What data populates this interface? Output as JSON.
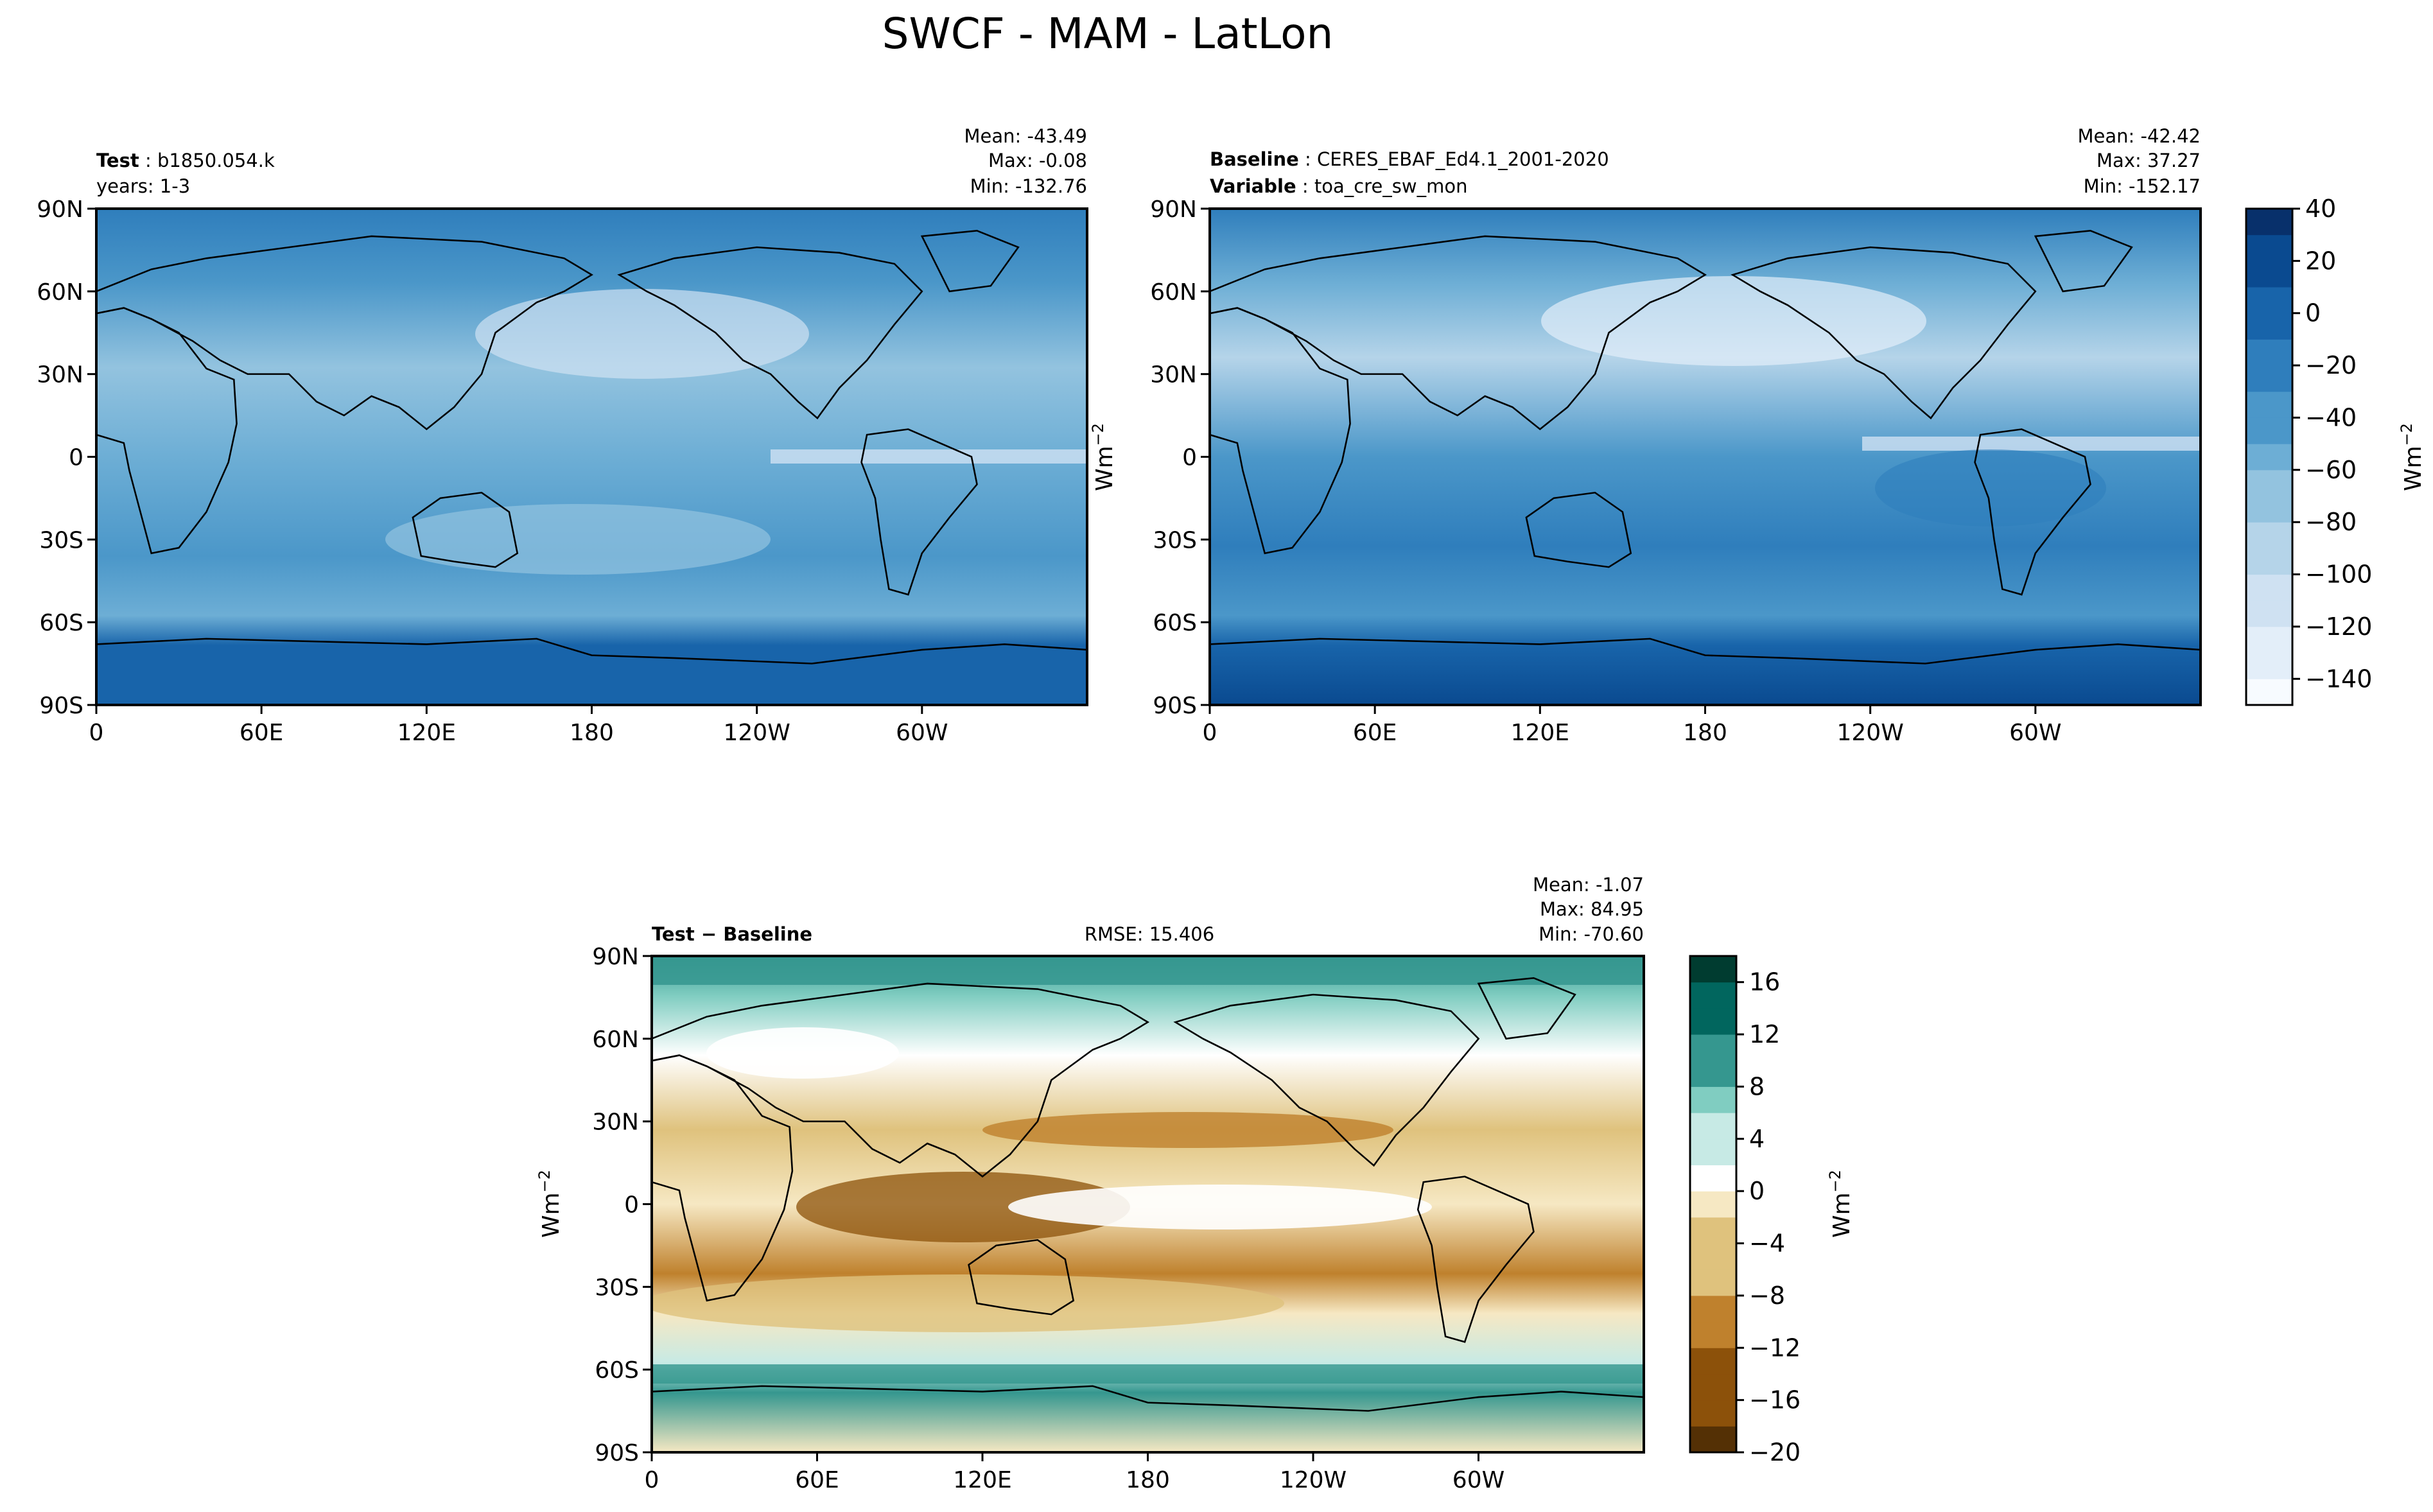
{
  "chart_data": [
    {
      "type": "heatmap",
      "id": "test",
      "panel_label_bold": "Test",
      "panel_label_value": "b1850.054.k",
      "panel_label_line2": "years: 1-3",
      "stats": [
        "Mean: -43.49",
        "Max: -0.08",
        "Min: -132.76"
      ],
      "xticks": [
        "0",
        "60E",
        "120E",
        "180",
        "120W",
        "60W"
      ],
      "yticks": [
        "90N",
        "60N",
        "30N",
        "0",
        "30S",
        "60S",
        "90S"
      ]
    },
    {
      "type": "heatmap",
      "id": "baseline",
      "panel_label_bold": "Baseline",
      "panel_label_value": "CERES_EBAF_Ed4.1_2001-2020",
      "panel_label2_bold": "Variable",
      "panel_label2_value": "toa_cre_sw_mon",
      "stats": [
        "Mean: -42.42",
        "Max: 37.27",
        "Min: -152.17"
      ],
      "xticks": [
        "0",
        "60E",
        "120E",
        "180",
        "120W",
        "60W"
      ],
      "yticks": [
        "90N",
        "60N",
        "30N",
        "0",
        "30S",
        "60S",
        "90S"
      ]
    },
    {
      "type": "heatmap",
      "id": "diff",
      "panel_label_bold": "Test − Baseline",
      "rmse": "RMSE: 15.406",
      "stats": [
        "Mean: -1.07",
        "Max: 84.95",
        "Min: -70.60"
      ],
      "xticks": [
        "0",
        "60E",
        "120E",
        "180",
        "120W",
        "60W"
      ],
      "yticks": [
        "90N",
        "60N",
        "30N",
        "0",
        "30S",
        "60S",
        "90S"
      ]
    }
  ],
  "title": "SWCF - MAM - LatLon",
  "colorbar_main": {
    "label": "Wm",
    "label_sup": "−2",
    "ticks": [
      "40",
      "20",
      "0",
      "−20",
      "−40",
      "−60",
      "−80",
      "−100",
      "−120",
      "−140"
    ],
    "range": [
      -150,
      40
    ]
  },
  "colorbar_diff": {
    "label": "Wm",
    "label_sup": "−2",
    "ticks": [
      "16",
      "12",
      "8",
      "4",
      "0",
      "−4",
      "−8",
      "−12",
      "−16",
      "−20"
    ],
    "range": [
      -20,
      18
    ]
  },
  "side_axis_label": {
    "text": "Wm",
    "sup": "−2"
  },
  "colors": {
    "blues": [
      "#f7fbff",
      "#e3eef9",
      "#cfe1f2",
      "#b5d4e9",
      "#93c3df",
      "#6daed5",
      "#4b97c9",
      "#2f7ebc",
      "#1864aa",
      "#0a4a90",
      "#08306b"
    ],
    "brbg_neg": [
      "#543005",
      "#8c510a",
      "#bf812d",
      "#dfc27d",
      "#f6e8c3"
    ],
    "brbg_pos": [
      "#ffffff",
      "#c7eae5",
      "#80cdc1",
      "#35978f",
      "#01665e",
      "#003c30"
    ]
  }
}
